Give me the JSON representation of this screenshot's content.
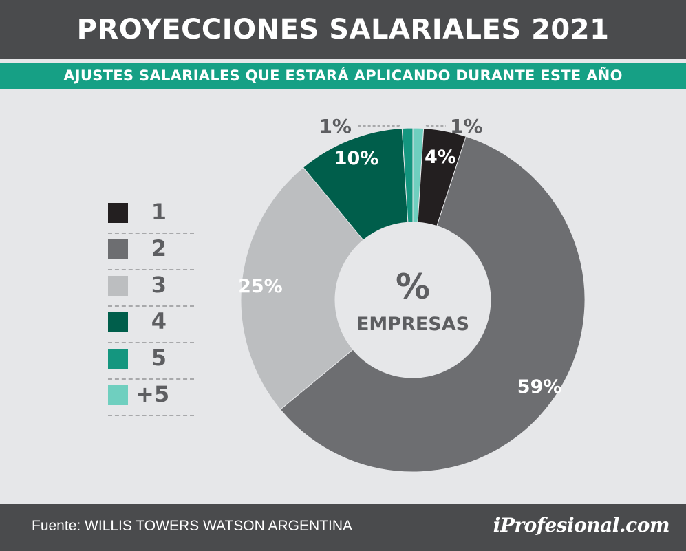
{
  "header": {
    "title": "PROYECCIONES SALARIALES 2021"
  },
  "subheader": {
    "title": "AJUSTES SALARIALES QUE ESTARÁ APLICANDO DURANTE ESTE AÑO"
  },
  "chart_data": {
    "type": "pie",
    "title": "PROYECCIONES SALARIALES 2021",
    "subtitle": "AJUSTES SALARIALES QUE ESTARÁ APLICANDO DURANTE ESTE AÑO",
    "center_label": {
      "symbol": "%",
      "text": "EMPRESAS"
    },
    "legend_position": "left",
    "slices": [
      {
        "label": "1",
        "value": 4,
        "value_label": "4%",
        "color": "#231f20"
      },
      {
        "label": "2",
        "value": 59,
        "value_label": "59%",
        "color": "#6d6e71"
      },
      {
        "label": "3",
        "value": 25,
        "value_label": "25%",
        "color": "#bcbec0"
      },
      {
        "label": "4",
        "value": 10,
        "value_label": "10%",
        "color": "#005e4b"
      },
      {
        "label": "5",
        "value": 1,
        "value_label": "1%",
        "color": "#14967f"
      },
      {
        "label": "+5",
        "value": 1,
        "value_label": "1%",
        "color": "#6fcfbf"
      }
    ]
  },
  "footer": {
    "source": "Fuente: WILLIS TOWERS WATSON ARGENTINA",
    "brand": "iProfesional.com"
  }
}
